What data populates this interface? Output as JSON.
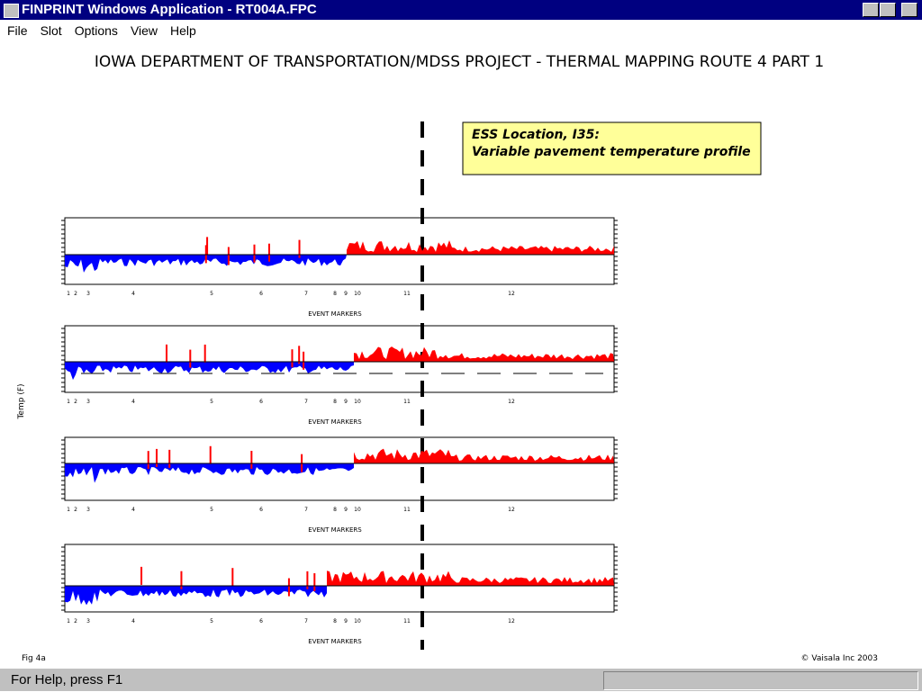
{
  "window": {
    "title": "FINPRINT Windows Application - RT004A.FPC"
  },
  "menu": [
    "File",
    "Slot",
    "Options",
    "View",
    "Help"
  ],
  "page_title": "IOWA DEPARTMENT OF TRANSPORTATION/MDSS PROJECT - THERMAL MAPPING ROUTE 4 PART 1",
  "annotation": [
    "ESS Location, I35:",
    "Variable pavement temperature profile"
  ],
  "y_axis_label": "Temp (F)",
  "panels": [
    {
      "x_label": "EVENT MARKERS"
    },
    {
      "x_label": "EVENT MARKERS"
    },
    {
      "x_label": "EVENT MARKERS"
    },
    {
      "x_label": "EVENT MARKERS"
    }
  ],
  "event_markers": [
    "1",
    "2",
    "3",
    "4",
    "5",
    "6",
    "7",
    "8",
    "9",
    "10",
    "11",
    "12"
  ],
  "footer": {
    "left": "Fig 4a",
    "right": "© Vaisala Inc 2003"
  },
  "status": "For Help, press F1"
}
